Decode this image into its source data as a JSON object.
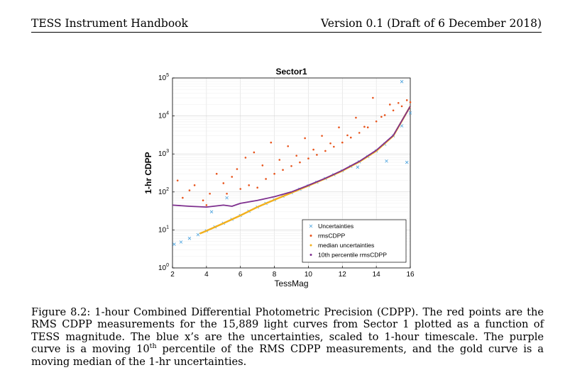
{
  "header": {
    "left": "TESS Instrument Handbook",
    "right": "Version 0.1 (Draft of 6 December 2018)"
  },
  "colors": {
    "uncertainties": "#4aa3df",
    "rmscdpp": "#e8541c",
    "median": "#f2b01e",
    "percentile10": "#7e2f8e"
  },
  "chart_data": {
    "type": "scatter",
    "title": "Sector1",
    "xlabel": "TessMag",
    "ylabel": "1-hr CDPP",
    "xlim": [
      2,
      16
    ],
    "ylim": [
      1,
      100000
    ],
    "yscale": "log",
    "grid": true,
    "legend_position": "bottom-right",
    "xticks": [
      "2",
      "4",
      "6",
      "8",
      "10",
      "12",
      "14",
      "16"
    ],
    "yticks": [
      {
        "base": "10",
        "exp": "0",
        "value": 1
      },
      {
        "base": "10",
        "exp": "1",
        "value": 10
      },
      {
        "base": "10",
        "exp": "2",
        "value": 100
      },
      {
        "base": "10",
        "exp": "3",
        "value": 1000
      },
      {
        "base": "10",
        "exp": "4",
        "value": 10000
      },
      {
        "base": "10",
        "exp": "5",
        "value": 100000
      }
    ],
    "series": [
      {
        "name": "Uncertainties",
        "marker": "x",
        "points": [
          [
            2.1,
            4.2
          ],
          [
            2.5,
            4.8
          ],
          [
            3.0,
            6.0
          ],
          [
            3.5,
            7.5
          ],
          [
            4.0,
            9.5
          ],
          [
            4.5,
            12
          ],
          [
            5.0,
            15
          ],
          [
            5.5,
            19
          ],
          [
            6.0,
            24
          ],
          [
            6.5,
            31
          ],
          [
            7.0,
            40
          ],
          [
            7.5,
            50
          ],
          [
            8.0,
            62
          ],
          [
            8.5,
            77
          ],
          [
            9.0,
            95
          ],
          [
            9.5,
            118
          ],
          [
            10.0,
            145
          ],
          [
            10.5,
            180
          ],
          [
            11.0,
            225
          ],
          [
            11.5,
            285
          ],
          [
            12.0,
            360
          ],
          [
            12.5,
            470
          ],
          [
            13.0,
            620
          ],
          [
            13.5,
            850
          ],
          [
            14.0,
            1200
          ],
          [
            14.5,
            1800
          ],
          [
            15.0,
            3000
          ],
          [
            15.5,
            5500
          ],
          [
            16.0,
            12000
          ],
          [
            15.5,
            80000
          ],
          [
            15.8,
            600
          ],
          [
            14.6,
            650
          ],
          [
            12.9,
            450
          ],
          [
            5.2,
            70
          ],
          [
            4.3,
            30
          ]
        ]
      },
      {
        "name": "rmsCDPP",
        "marker": "dot",
        "points": [
          [
            2.3,
            200
          ],
          [
            2.6,
            70
          ],
          [
            3.0,
            110
          ],
          [
            3.3,
            150
          ],
          [
            3.8,
            60
          ],
          [
            4.0,
            45
          ],
          [
            4.2,
            90
          ],
          [
            4.6,
            300
          ],
          [
            5.0,
            170
          ],
          [
            5.2,
            90
          ],
          [
            5.5,
            250
          ],
          [
            5.8,
            400
          ],
          [
            6.0,
            120
          ],
          [
            6.3,
            800
          ],
          [
            6.5,
            150
          ],
          [
            6.8,
            1100
          ],
          [
            7.0,
            130
          ],
          [
            7.3,
            500
          ],
          [
            7.5,
            220
          ],
          [
            7.8,
            2000
          ],
          [
            8.0,
            300
          ],
          [
            8.3,
            700
          ],
          [
            8.5,
            380
          ],
          [
            8.8,
            1600
          ],
          [
            9.0,
            480
          ],
          [
            9.3,
            900
          ],
          [
            9.5,
            600
          ],
          [
            9.8,
            2600
          ],
          [
            10.0,
            760
          ],
          [
            10.3,
            1300
          ],
          [
            10.5,
            950
          ],
          [
            10.8,
            3000
          ],
          [
            11.0,
            1200
          ],
          [
            11.3,
            1900
          ],
          [
            11.5,
            1550
          ],
          [
            11.8,
            5000
          ],
          [
            12.0,
            2000
          ],
          [
            12.3,
            3100
          ],
          [
            12.5,
            2700
          ],
          [
            12.8,
            9000
          ],
          [
            13.0,
            3600
          ],
          [
            13.3,
            5200
          ],
          [
            13.5,
            5000
          ],
          [
            13.8,
            30000
          ],
          [
            14.0,
            7200
          ],
          [
            14.3,
            9500
          ],
          [
            14.5,
            10500
          ],
          [
            14.8,
            20000
          ],
          [
            15.0,
            14000
          ],
          [
            15.3,
            22000
          ],
          [
            15.5,
            18000
          ],
          [
            15.8,
            26000
          ],
          [
            16.0,
            23000
          ]
        ]
      },
      {
        "name": "median uncertainties",
        "marker": "line",
        "points": [
          [
            3.6,
            8
          ],
          [
            4,
            9.5
          ],
          [
            5,
            15
          ],
          [
            6,
            24
          ],
          [
            7,
            40
          ],
          [
            8,
            62
          ],
          [
            9,
            95
          ],
          [
            10,
            145
          ],
          [
            11,
            225
          ],
          [
            12,
            360
          ],
          [
            13,
            620
          ],
          [
            14,
            1200
          ],
          [
            15,
            3000
          ],
          [
            16,
            18000
          ]
        ]
      },
      {
        "name": "10th percentile rmsCDPP",
        "marker": "line",
        "points": [
          [
            2,
            45
          ],
          [
            3,
            42
          ],
          [
            4,
            40
          ],
          [
            5,
            45
          ],
          [
            5.5,
            42
          ],
          [
            6,
            50
          ],
          [
            7,
            60
          ],
          [
            8,
            75
          ],
          [
            9,
            100
          ],
          [
            10,
            150
          ],
          [
            11,
            230
          ],
          [
            12,
            370
          ],
          [
            13,
            640
          ],
          [
            14,
            1250
          ],
          [
            15,
            3100
          ],
          [
            16,
            18000
          ]
        ]
      }
    ]
  },
  "caption": {
    "part1": "Figure 8.2: 1-hour Combined Differential Photometric Precision (CDPP). The red points are the RMS CDPP measurements for the 15,889 light curves from Sector 1 plotted as a function of TESS magnitude. The blue x’s are the uncertainties, scaled to 1-hour timescale. The purple curve is a moving 10",
    "sup": "th",
    "part2": " percentile of the RMS CDPP measurements, and the gold curve is a moving median of the 1-hr uncertainties."
  }
}
